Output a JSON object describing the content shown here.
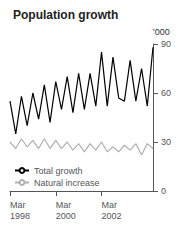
{
  "chart_data": {
    "type": "line",
    "title": "Population growth",
    "ylabel": "'000",
    "categories": [
      "Mar\n1998",
      null,
      null,
      null,
      null,
      null,
      null,
      null,
      "Mar\n2000",
      null,
      null,
      null,
      null,
      null,
      null,
      null,
      "Mar\n2002",
      null,
      null,
      null,
      null,
      null,
      null,
      null,
      null,
      null
    ],
    "series": [
      {
        "name": "Total growth",
        "color": "#000000",
        "values": [
          55,
          35,
          58,
          40,
          60,
          44,
          65,
          42,
          67,
          50,
          70,
          48,
          72,
          50,
          72,
          52,
          85,
          52,
          82,
          57,
          55,
          80,
          55,
          75,
          52,
          88
        ]
      },
      {
        "name": "Natural increase",
        "color": "#b0b0b0",
        "values": [
          30,
          26,
          32,
          27,
          31,
          26,
          32,
          26,
          31,
          26,
          30,
          25,
          29,
          24,
          29,
          25,
          30,
          24,
          27,
          24,
          28,
          25,
          29,
          22,
          29,
          26
        ]
      }
    ],
    "ylim": [
      0,
      90
    ],
    "yticks": [
      0,
      30,
      60,
      90
    ],
    "grid": false,
    "legend": "lower left"
  }
}
